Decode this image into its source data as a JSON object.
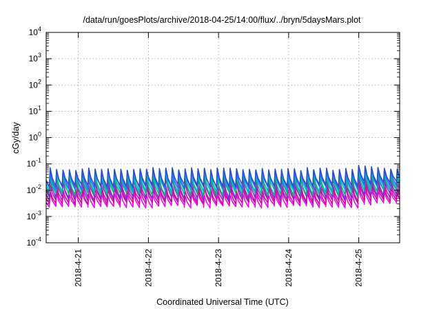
{
  "chart_data": {
    "type": "line",
    "title": "/data/run/goesPlots/archive/2018-04-25/14:00/flux/../bryn/5daysMars.plot",
    "xlabel": "Coordinated Universal Time (UTC)",
    "ylabel": "cGy/day",
    "y_scale": "log",
    "ylim": [
      0.0001,
      10000
    ],
    "y_ticks": [
      {
        "value": 0.0001,
        "base": "10",
        "exp": "-4"
      },
      {
        "value": 0.001,
        "base": "10",
        "exp": "-3"
      },
      {
        "value": 0.01,
        "base": "10",
        "exp": "-2"
      },
      {
        "value": 0.1,
        "base": "10",
        "exp": "-1"
      },
      {
        "value": 1,
        "base": "10",
        "exp": "0"
      },
      {
        "value": 10,
        "base": "10",
        "exp": "1"
      },
      {
        "value": 100,
        "base": "10",
        "exp": "2"
      },
      {
        "value": 1000,
        "base": "10",
        "exp": "3"
      },
      {
        "value": 10000,
        "base": "10",
        "exp": "4"
      }
    ],
    "xlim": [
      "2018-04-20 13:00",
      "2018-04-25 14:00"
    ],
    "x_ticks": [
      "2018-4-21",
      "2018-4-22",
      "2018-4-23",
      "2018-4-24",
      "2018-4-25"
    ],
    "grid": true,
    "series_colors": [
      "#ff00ff",
      "#e0009a",
      "#9b28a8",
      "#8a2bd8",
      "#00c070",
      "#00b8c8",
      "#4060ff",
      "#2a50c8"
    ],
    "period_hours": 2.2,
    "series": [
      {
        "peak_range": [
          0.006,
          0.0085
        ],
        "trough_range": [
          0.0021,
          0.0028
        ],
        "enhanced_peak": 0.012
      },
      {
        "peak_range": [
          0.009,
          0.013
        ],
        "trough_range": [
          0.0028,
          0.0036
        ],
        "enhanced_peak": 0.018
      },
      {
        "peak_range": [
          0.014,
          0.02
        ],
        "trough_range": [
          0.0036,
          0.0045
        ],
        "enhanced_peak": 0.028
      },
      {
        "peak_range": [
          0.022,
          0.03
        ],
        "trough_range": [
          0.0045,
          0.0058
        ],
        "enhanced_peak": 0.042
      },
      {
        "peak_range": [
          0.028,
          0.038
        ],
        "trough_range": [
          0.006,
          0.0078
        ],
        "enhanced_peak": 0.05
      },
      {
        "peak_range": [
          0.038,
          0.05
        ],
        "trough_range": [
          0.008,
          0.0105
        ],
        "enhanced_peak": 0.066
      },
      {
        "peak_range": [
          0.05,
          0.064
        ],
        "trough_range": [
          0.011,
          0.014
        ],
        "enhanced_peak": 0.082
      },
      {
        "peak_range": [
          0.055,
          0.072
        ],
        "trough_range": [
          0.013,
          0.017
        ],
        "enhanced_peak": 0.092
      }
    ]
  }
}
